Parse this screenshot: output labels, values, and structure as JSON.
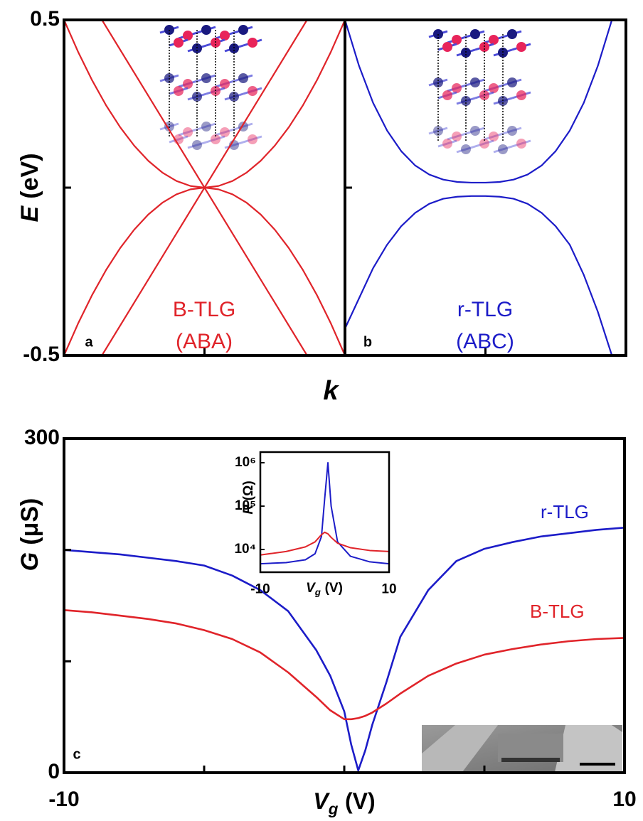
{
  "chart_data": [
    {
      "type": "line",
      "panel": "a",
      "ylabel": {
        "symbol": "E",
        "unit": "(eV)"
      },
      "xlabel": {
        "symbol": "k"
      },
      "xlim": [
        -1,
        1
      ],
      "ylim": [
        -0.5,
        0.5
      ],
      "yticks": [
        -0.5,
        0.5
      ],
      "minor_yticks": [
        0
      ],
      "minor_xticks": [
        0
      ],
      "notes": [
        "B-TLG",
        "(ABA)"
      ],
      "series": [
        {
          "color": "#e0242a",
          "x": [
            -0.73,
            0.73
          ],
          "values": [
            0.5,
            -0.5
          ]
        },
        {
          "color": "#e0242a",
          "x": [
            -0.73,
            0.73
          ],
          "values": [
            -0.5,
            0.5
          ]
        },
        {
          "color": "#e0242a",
          "x": [
            -1,
            -0.9,
            -0.8,
            -0.7,
            -0.6,
            -0.5,
            -0.4,
            -0.3,
            -0.2,
            -0.1,
            0,
            0.1,
            0.2,
            0.3,
            0.4,
            0.5,
            0.6,
            0.7,
            0.8,
            0.9,
            1
          ],
          "values": [
            0.5,
            0.405,
            0.32,
            0.245,
            0.18,
            0.125,
            0.08,
            0.045,
            0.02,
            0.005,
            0,
            0.005,
            0.02,
            0.045,
            0.08,
            0.125,
            0.18,
            0.245,
            0.32,
            0.405,
            0.5
          ]
        },
        {
          "color": "#e0242a",
          "x": [
            -1,
            -0.9,
            -0.8,
            -0.7,
            -0.6,
            -0.5,
            -0.4,
            -0.3,
            -0.2,
            -0.1,
            0,
            0.1,
            0.2,
            0.3,
            0.4,
            0.5,
            0.6,
            0.7,
            0.8,
            0.9,
            1
          ],
          "values": [
            -0.5,
            -0.405,
            -0.32,
            -0.245,
            -0.18,
            -0.125,
            -0.08,
            -0.045,
            -0.02,
            -0.005,
            0,
            -0.005,
            -0.02,
            -0.045,
            -0.08,
            -0.125,
            -0.18,
            -0.245,
            -0.32,
            -0.405,
            -0.5
          ]
        }
      ]
    },
    {
      "type": "line",
      "panel": "b",
      "xlim": [
        -1,
        1
      ],
      "ylim": [
        -0.5,
        0.5
      ],
      "minor_yticks": [
        0
      ],
      "minor_xticks": [
        0
      ],
      "notes": [
        "r-TLG",
        "(ABC)"
      ],
      "series": [
        {
          "color": "#1c1cc8",
          "x": [
            -1,
            -0.9,
            -0.8,
            -0.7,
            -0.6,
            -0.5,
            -0.4,
            -0.3,
            -0.2,
            -0.1,
            0,
            0.1,
            0.2,
            0.3,
            0.4,
            0.5,
            0.6,
            0.7,
            0.8,
            0.9
          ],
          "values": [
            0.5,
            0.363,
            0.253,
            0.17,
            0.109,
            0.066,
            0.039,
            0.024,
            0.017,
            0.015,
            0.015,
            0.017,
            0.024,
            0.039,
            0.066,
            0.109,
            0.17,
            0.253,
            0.363,
            0.5
          ]
        },
        {
          "color": "#1c1cc8",
          "x": [
            -1,
            -0.9,
            -0.8,
            -0.7,
            -0.6,
            -0.5,
            -0.4,
            -0.3,
            -0.2,
            -0.1,
            0,
            0.1,
            0.2,
            0.3,
            0.4,
            0.5,
            0.6,
            0.7,
            0.8,
            0.9
          ],
          "values": [
            -0.42,
            -0.33,
            -0.24,
            -0.17,
            -0.115,
            -0.075,
            -0.048,
            -0.033,
            -0.027,
            -0.025,
            -0.025,
            -0.027,
            -0.033,
            -0.048,
            -0.075,
            -0.115,
            -0.17,
            -0.26,
            -0.37,
            -0.5
          ]
        }
      ]
    },
    {
      "type": "line",
      "panel": "c",
      "ylabel": {
        "symbol": "G",
        "unit": "(μS)"
      },
      "xlabel": {
        "symbol": "V",
        "subscript": "g",
        "unit": "(V)"
      },
      "xlim": [
        -10,
        10
      ],
      "ylim": [
        0,
        300
      ],
      "xticks": [
        -10,
        10
      ],
      "yticks": [
        0,
        300
      ],
      "minor_xticks": [
        -5,
        0,
        5
      ],
      "minor_yticks": [
        100,
        200
      ],
      "x": [
        -10,
        -9,
        -8,
        -7,
        -6,
        -5,
        -4,
        -3,
        -2,
        -1,
        -0.5,
        0,
        0.25,
        0.5,
        0.75,
        1,
        1.5,
        2,
        3,
        4,
        5,
        6,
        7,
        8,
        9,
        10
      ],
      "series": [
        {
          "name": "r-TLG",
          "color": "#1c1cc8",
          "values": [
            200,
            198,
            196,
            193,
            190,
            186,
            177,
            164,
            145,
            110,
            87,
            55,
            25,
            2,
            20,
            43,
            81,
            122,
            164,
            190,
            201,
            207,
            212,
            215,
            218,
            220
          ]
        },
        {
          "name": "B-TLG",
          "color": "#e0242a",
          "values": [
            146,
            144,
            141,
            138,
            134,
            128,
            120,
            108,
            90,
            68,
            56,
            48,
            48,
            49,
            51,
            54,
            62,
            71,
            87,
            98,
            106,
            111,
            115,
            118,
            120,
            121
          ]
        }
      ]
    },
    {
      "type": "line",
      "log_y": true,
      "ylabel": {
        "symbol": "R",
        "unit": "(Ω)"
      },
      "xlabel": {
        "symbol": "V",
        "subscript": "g",
        "unit": "(V)"
      },
      "xlim": [
        -10,
        10
      ],
      "ylim": [
        3000,
        1760000
      ],
      "xticks": [
        -10,
        10
      ],
      "yticks": [
        {
          "value": 10000,
          "label": "10⁴"
        },
        {
          "value": 100000,
          "label": "10⁵"
        },
        {
          "value": 1000000,
          "label": "10⁶"
        }
      ],
      "x": [
        -10,
        -6,
        -3,
        -1.5,
        -0.5,
        0,
        0.5,
        1,
        2,
        4,
        7,
        10
      ],
      "series": [
        {
          "color": "#1c1cc8",
          "values": [
            4700,
            5000,
            5800,
            8000,
            20000,
            150000,
            1000000,
            100000,
            15000,
            7000,
            5200,
            4700
          ]
        },
        {
          "color": "#e0242a",
          "values": [
            7500,
            9000,
            11500,
            15000,
            22000,
            25000,
            23000,
            19000,
            14000,
            11000,
            9500,
            9000
          ]
        }
      ]
    }
  ]
}
